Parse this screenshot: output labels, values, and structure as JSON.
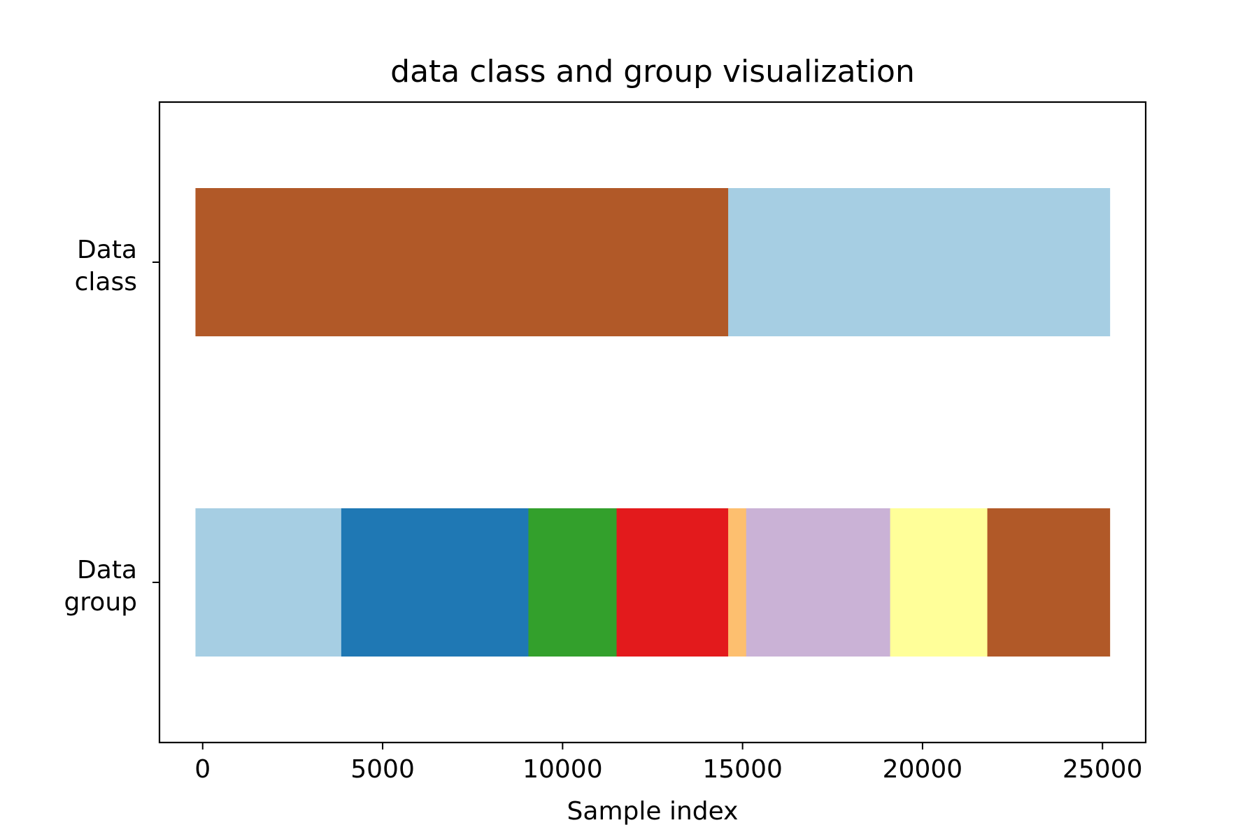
{
  "chart_data": {
    "type": "bar",
    "orientation": "horizontal-stacked-segments",
    "title": "data class and group visualization",
    "xlabel": "Sample index",
    "ylabel": "",
    "xlim": [
      -1200,
      26200
    ],
    "xticks": [
      0,
      5000,
      10000,
      15000,
      20000,
      25000
    ],
    "xtick_labels": [
      "0",
      "5000",
      "10000",
      "15000",
      "20000",
      "25000"
    ],
    "grid": false,
    "legend": "none",
    "categories": [
      {
        "key": "class",
        "label_lines": [
          "Data",
          "class"
        ]
      },
      {
        "key": "group",
        "label_lines": [
          "Data",
          "group"
        ]
      }
    ],
    "rows": [
      {
        "category": "class",
        "segments": [
          {
            "x0": -200,
            "x1": 14600,
            "color": "#b15928"
          },
          {
            "x0": 14600,
            "x1": 25200,
            "color": "#a6cee3"
          }
        ]
      },
      {
        "category": "group",
        "segments": [
          {
            "x0": -200,
            "x1": 3850,
            "color": "#a6cee3"
          },
          {
            "x0": 3850,
            "x1": 9050,
            "color": "#1f78b4"
          },
          {
            "x0": 9050,
            "x1": 11500,
            "color": "#33a02c"
          },
          {
            "x0": 11500,
            "x1": 14600,
            "color": "#e31a1c"
          },
          {
            "x0": 14600,
            "x1": 15100,
            "color": "#fdbf6f"
          },
          {
            "x0": 15100,
            "x1": 19100,
            "color": "#cab2d6"
          },
          {
            "x0": 19100,
            "x1": 21800,
            "color": "#ffff99"
          },
          {
            "x0": 21800,
            "x1": 25200,
            "color": "#b15928"
          }
        ]
      }
    ]
  }
}
